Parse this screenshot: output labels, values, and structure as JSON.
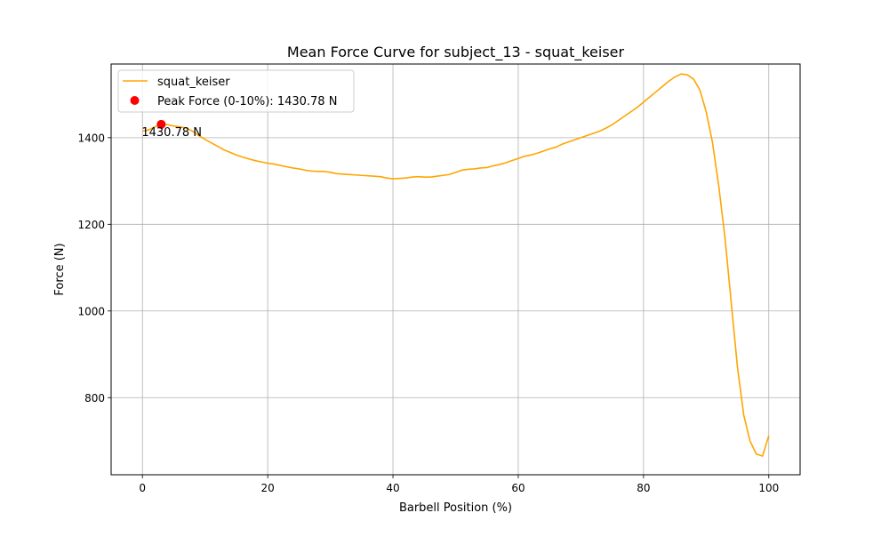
{
  "chart_data": {
    "type": "line",
    "title": "Mean Force Curve for subject_13 - squat_keiser",
    "xlabel": "Barbell Position (%)",
    "ylabel": "Force (N)",
    "xlim": [
      -5,
      105
    ],
    "ylim": [
      622,
      1570
    ],
    "x_ticks": [
      0,
      20,
      40,
      60,
      80,
      100
    ],
    "y_ticks": [
      800,
      1000,
      1200,
      1400
    ],
    "grid": true,
    "legend_placement": "top-left",
    "series": [
      {
        "name": "squat_keiser",
        "color": "#ffa500",
        "x": [
          0,
          1,
          2,
          3,
          4,
          5,
          6,
          7,
          8,
          9,
          10,
          11,
          12,
          13,
          14,
          15,
          16,
          17,
          18,
          19,
          20,
          21,
          22,
          23,
          24,
          25,
          26,
          27,
          28,
          29,
          30,
          31,
          32,
          33,
          34,
          35,
          36,
          37,
          38,
          39,
          40,
          41,
          42,
          43,
          44,
          45,
          46,
          47,
          48,
          49,
          50,
          51,
          52,
          53,
          54,
          55,
          56,
          57,
          58,
          59,
          60,
          61,
          62,
          63,
          64,
          65,
          66,
          67,
          68,
          69,
          70,
          71,
          72,
          73,
          74,
          75,
          76,
          77,
          78,
          79,
          80,
          81,
          82,
          83,
          84,
          85,
          86,
          87,
          88,
          89,
          90,
          91,
          92,
          93,
          94,
          95,
          96,
          97,
          98,
          99,
          100
        ],
        "y": [
          1415,
          1418,
          1425,
          1431,
          1430,
          1427,
          1425,
          1422,
          1415,
          1405,
          1396,
          1388,
          1380,
          1372,
          1366,
          1360,
          1355,
          1351,
          1347,
          1344,
          1341,
          1339,
          1336,
          1333,
          1330,
          1328,
          1325,
          1323,
          1322,
          1322,
          1320,
          1317,
          1316,
          1315,
          1314,
          1313,
          1312,
          1311,
          1310,
          1307,
          1305,
          1306,
          1307,
          1309,
          1310,
          1309,
          1309,
          1311,
          1313,
          1315,
          1320,
          1325,
          1327,
          1328,
          1330,
          1331,
          1335,
          1338,
          1342,
          1347,
          1352,
          1357,
          1360,
          1364,
          1369,
          1374,
          1378,
          1385,
          1390,
          1395,
          1400,
          1405,
          1410,
          1415,
          1422,
          1430,
          1440,
          1450,
          1460,
          1470,
          1482,
          1494,
          1506,
          1518,
          1530,
          1540,
          1547,
          1545,
          1535,
          1510,
          1460,
          1390,
          1290,
          1170,
          1020,
          870,
          760,
          700,
          670,
          665,
          712
        ]
      },
      {
        "name": "Peak Force (0-10%): 1430.78 N",
        "color": "#ff0000",
        "type": "scatter",
        "x": [
          3
        ],
        "y": [
          1430.78
        ]
      }
    ],
    "annotations": [
      {
        "text": "1430.78 N",
        "x": 3,
        "y": 1430.78
      }
    ]
  }
}
